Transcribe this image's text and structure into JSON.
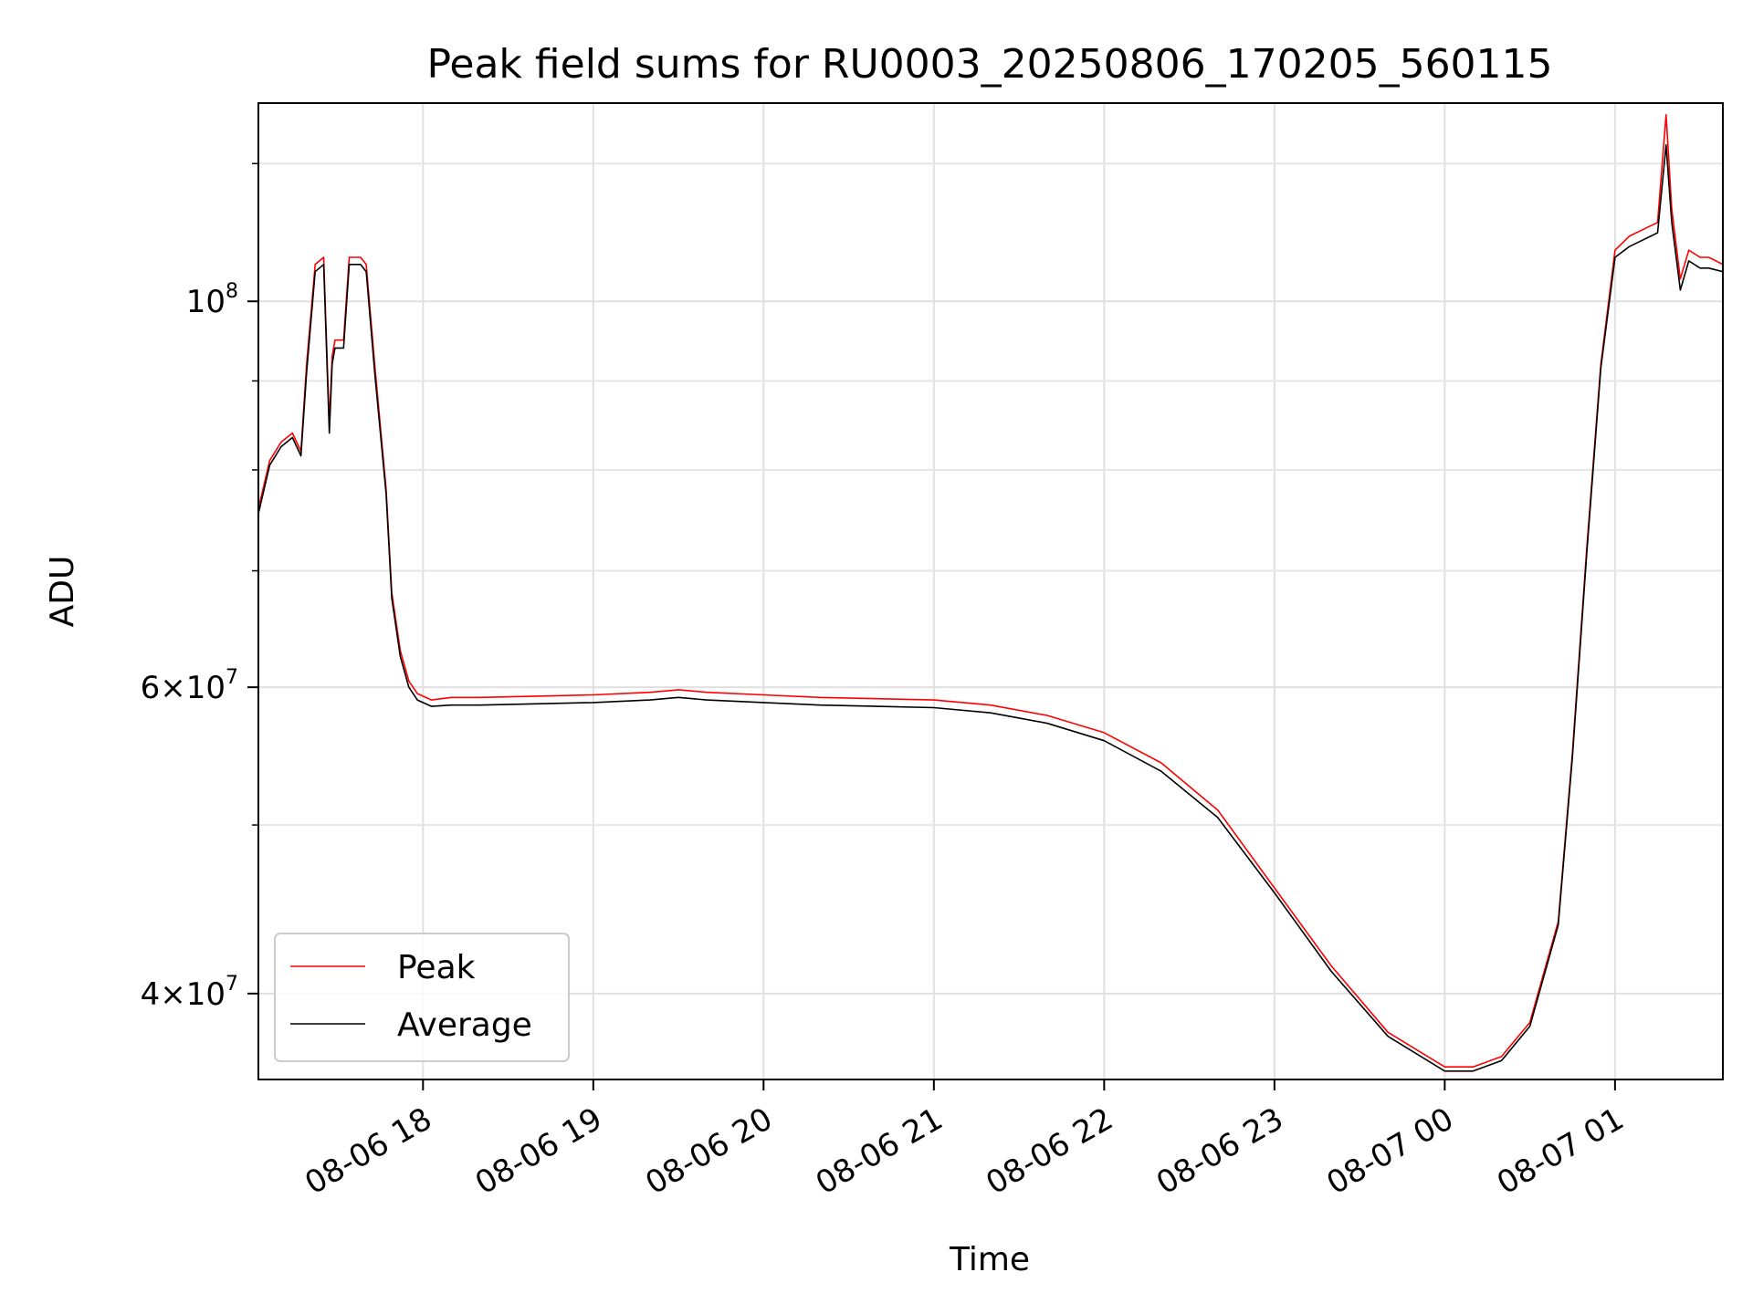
{
  "chart_data": {
    "type": "line",
    "title": "Peak field sums for RU0003_20250806_170205_560115",
    "xlabel": "Time",
    "ylabel": "ADU",
    "y_scale": "log",
    "grid": true,
    "legend_position": "lower-left",
    "x_tick_labels": [
      "08-06 18",
      "08-06 19",
      "08-06 20",
      "08-06 21",
      "08-06 22",
      "08-06 23",
      "08-07 00",
      "08-07 01"
    ],
    "y_tick_labels": [
      {
        "value": 40000000,
        "mantissa": "4",
        "exponent": "7"
      },
      {
        "value": 60000000,
        "mantissa": "6",
        "exponent": "7"
      },
      {
        "value": 100000000,
        "mantissa": "10",
        "exponent": "8"
      }
    ],
    "xlim": [
      "2025-08-06 17:02",
      "2025-08-07 01:38"
    ],
    "ylim": [
      35700000,
      130000000
    ],
    "series": [
      {
        "name": "Peak",
        "color": "#ff0000",
        "x": [
          "2025-08-06 17:02",
          "2025-08-06 17:06",
          "2025-08-06 17:10",
          "2025-08-06 17:14",
          "2025-08-06 17:17",
          "2025-08-06 17:19",
          "2025-08-06 17:22",
          "2025-08-06 17:25",
          "2025-08-06 17:27",
          "2025-08-06 17:28",
          "2025-08-06 17:29",
          "2025-08-06 17:32",
          "2025-08-06 17:34",
          "2025-08-06 17:35",
          "2025-08-06 17:36",
          "2025-08-06 17:38",
          "2025-08-06 17:40",
          "2025-08-06 17:43",
          "2025-08-06 17:47",
          "2025-08-06 17:49",
          "2025-08-06 17:52",
          "2025-08-06 17:55",
          "2025-08-06 17:58",
          "2025-08-06 18:03",
          "2025-08-06 18:10",
          "2025-08-06 18:20",
          "2025-08-06 18:40",
          "2025-08-06 19:00",
          "2025-08-06 19:20",
          "2025-08-06 19:30",
          "2025-08-06 19:40",
          "2025-08-06 20:00",
          "2025-08-06 20:20",
          "2025-08-06 20:40",
          "2025-08-06 21:00",
          "2025-08-06 21:20",
          "2025-08-06 21:40",
          "2025-08-06 22:00",
          "2025-08-06 22:20",
          "2025-08-06 22:40",
          "2025-08-06 23:00",
          "2025-08-06 23:20",
          "2025-08-06 23:40",
          "2025-08-07 00:00",
          "2025-08-07 00:10",
          "2025-08-07 00:20",
          "2025-08-07 00:30",
          "2025-08-07 00:40",
          "2025-08-07 00:45",
          "2025-08-07 00:50",
          "2025-08-07 00:55",
          "2025-08-07 01:00",
          "2025-08-07 01:05",
          "2025-08-07 01:10",
          "2025-08-07 01:15",
          "2025-08-07 01:18",
          "2025-08-07 01:20",
          "2025-08-07 01:23",
          "2025-08-07 01:26",
          "2025-08-07 01:30",
          "2025-08-07 01:33",
          "2025-08-07 01:38"
        ],
        "values": [
          76000000,
          81000000,
          83000000,
          84000000,
          82000000,
          92000000,
          105000000,
          106000000,
          85000000,
          93000000,
          95000000,
          95000000,
          106000000,
          106000000,
          106000000,
          106000000,
          105000000,
          92000000,
          78000000,
          68000000,
          63000000,
          60500000,
          59500000,
          59000000,
          59200000,
          59200000,
          59300000,
          59400000,
          59600000,
          59800000,
          59600000,
          59400000,
          59200000,
          59100000,
          59000000,
          58600000,
          57800000,
          56500000,
          54300000,
          51000000,
          46000000,
          41500000,
          38000000,
          36300000,
          36300000,
          36800000,
          38500000,
          44000000,
          55000000,
          72000000,
          92000000,
          107000000,
          109000000,
          110000000,
          111000000,
          128000000,
          113000000,
          103000000,
          107000000,
          106000000,
          106000000,
          105000000
        ]
      },
      {
        "name": "Average",
        "color": "#000000",
        "x": [
          "2025-08-06 17:02",
          "2025-08-06 17:06",
          "2025-08-06 17:10",
          "2025-08-06 17:14",
          "2025-08-06 17:17",
          "2025-08-06 17:19",
          "2025-08-06 17:22",
          "2025-08-06 17:25",
          "2025-08-06 17:27",
          "2025-08-06 17:28",
          "2025-08-06 17:29",
          "2025-08-06 17:32",
          "2025-08-06 17:34",
          "2025-08-06 17:35",
          "2025-08-06 17:36",
          "2025-08-06 17:38",
          "2025-08-06 17:40",
          "2025-08-06 17:43",
          "2025-08-06 17:47",
          "2025-08-06 17:49",
          "2025-08-06 17:52",
          "2025-08-06 17:55",
          "2025-08-06 17:58",
          "2025-08-06 18:03",
          "2025-08-06 18:10",
          "2025-08-06 18:20",
          "2025-08-06 18:40",
          "2025-08-06 19:00",
          "2025-08-06 19:20",
          "2025-08-06 19:30",
          "2025-08-06 19:40",
          "2025-08-06 20:00",
          "2025-08-06 20:20",
          "2025-08-06 20:40",
          "2025-08-06 21:00",
          "2025-08-06 21:20",
          "2025-08-06 21:40",
          "2025-08-06 22:00",
          "2025-08-06 22:20",
          "2025-08-06 22:40",
          "2025-08-06 23:00",
          "2025-08-06 23:20",
          "2025-08-06 23:40",
          "2025-08-07 00:00",
          "2025-08-07 00:10",
          "2025-08-07 00:20",
          "2025-08-07 00:30",
          "2025-08-07 00:40",
          "2025-08-07 00:45",
          "2025-08-07 00:50",
          "2025-08-07 00:55",
          "2025-08-07 01:00",
          "2025-08-07 01:05",
          "2025-08-07 01:10",
          "2025-08-07 01:15",
          "2025-08-07 01:18",
          "2025-08-07 01:20",
          "2025-08-07 01:23",
          "2025-08-07 01:26",
          "2025-08-07 01:30",
          "2025-08-07 01:33",
          "2025-08-07 01:38"
        ],
        "values": [
          75500000,
          80500000,
          82500000,
          83500000,
          81500000,
          91000000,
          104000000,
          105000000,
          84000000,
          92000000,
          94000000,
          94000000,
          105000000,
          105000000,
          105000000,
          105000000,
          104000000,
          91000000,
          77500000,
          67500000,
          62500000,
          60000000,
          59000000,
          58500000,
          58600000,
          58600000,
          58700000,
          58800000,
          59000000,
          59200000,
          59000000,
          58800000,
          58600000,
          58500000,
          58400000,
          58000000,
          57200000,
          55900000,
          53700000,
          50500000,
          45700000,
          41200000,
          37800000,
          36100000,
          36100000,
          36600000,
          38300000,
          43800000,
          54700000,
          71500000,
          91500000,
          106000000,
          107500000,
          108500000,
          109500000,
          123000000,
          111000000,
          101500000,
          105500000,
          104500000,
          104500000,
          104000000
        ]
      }
    ]
  }
}
